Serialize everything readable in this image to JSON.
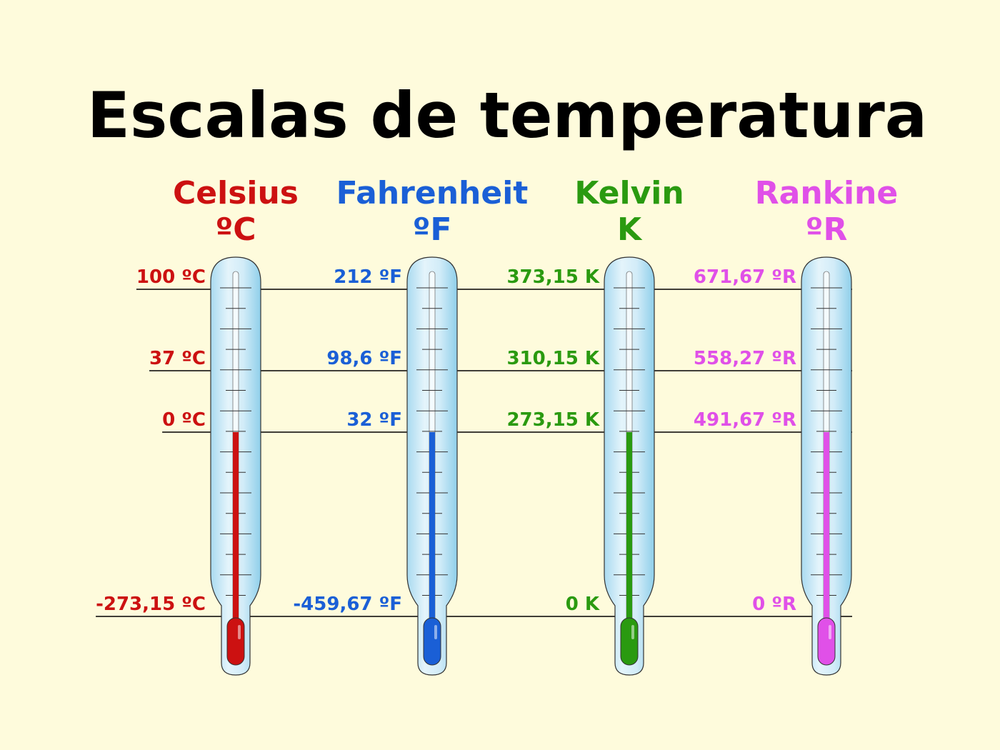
{
  "title": "Escalas de temperatura",
  "scales": [
    {
      "name": "Celsius",
      "unit": "ºC",
      "color": "#cc1111",
      "labels": [
        "100 ºC",
        "37 ºC",
        "0 ºC",
        "-273,15 ºC"
      ]
    },
    {
      "name": "Fahrenheit",
      "unit": "ºF",
      "color": "#1a5fd6",
      "labels": [
        "212 ºF",
        "98,6 ºF",
        "32 ºF",
        "-459,67 ºF"
      ]
    },
    {
      "name": "Kelvin",
      "unit": "K",
      "color": "#2a9a10",
      "labels": [
        "373,15 K",
        "310,15 K",
        "273,15 K",
        "0 K"
      ]
    },
    {
      "name": "Rankine",
      "unit": "ºR",
      "color": "#e050e8",
      "labels": [
        "671,67 ºR",
        "558,27 ºR",
        "491,67 ºR",
        "0 ºR"
      ]
    }
  ]
}
